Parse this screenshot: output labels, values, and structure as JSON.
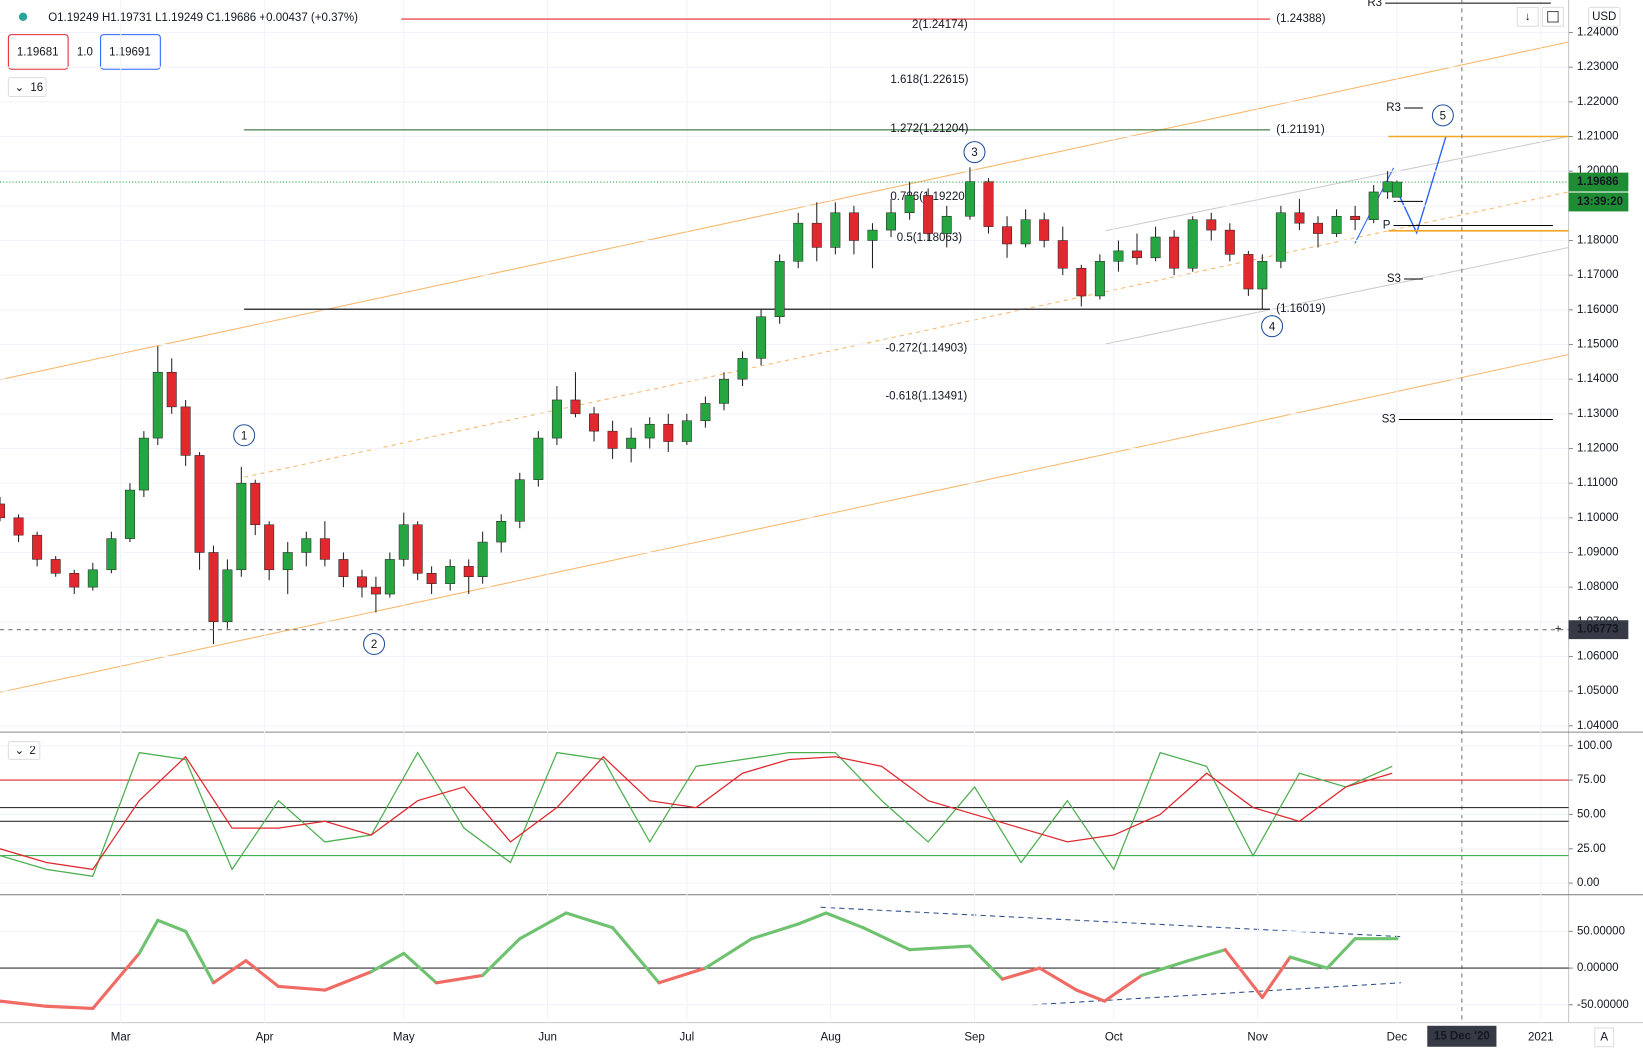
{
  "header": {
    "ohlc": "O1.19249 H1.19731 L1.19249 C1.19686 +0.00437 (+0.37%)",
    "sell": "1.19681",
    "spread": "1.0",
    "buy": "1.19691",
    "indicator_count": "16",
    "currency": "USD",
    "osc_count": "2",
    "auto": "A"
  },
  "chart_data": [
    {
      "type": "candlestick",
      "name": "price",
      "xlim": [
        34,
        372
      ],
      "ylim": [
        1.03818,
        1.24938
      ],
      "xticks": [
        {
          "value": 60,
          "label": "Mar"
        },
        {
          "value": 91,
          "label": "Apr"
        },
        {
          "value": 121,
          "label": "May"
        },
        {
          "value": 152,
          "label": "Jun"
        },
        {
          "value": 182,
          "label": "Jul"
        },
        {
          "value": 213,
          "label": "Aug"
        },
        {
          "value": 244,
          "label": "Sep"
        },
        {
          "value": 274,
          "label": "Oct"
        },
        {
          "value": 305,
          "label": "Nov"
        },
        {
          "value": 335,
          "label": "Dec"
        },
        {
          "value": 366,
          "label": "2021"
        }
      ],
      "yticks": [
        {
          "value": 1.04,
          "label": "1.04000"
        },
        {
          "value": 1.05,
          "label": "1.05000"
        },
        {
          "value": 1.06,
          "label": "1.06000"
        },
        {
          "value": 1.07,
          "label": "1.07000"
        },
        {
          "value": 1.08,
          "label": "1.08000"
        },
        {
          "value": 1.09,
          "label": "1.09000"
        },
        {
          "value": 1.1,
          "label": "1.10000"
        },
        {
          "value": 1.11,
          "label": "1.11000"
        },
        {
          "value": 1.12,
          "label": "1.12000"
        },
        {
          "value": 1.13,
          "label": "1.13000"
        },
        {
          "value": 1.14,
          "label": "1.14000"
        },
        {
          "value": 1.15,
          "label": "1.15000"
        },
        {
          "value": 1.16,
          "label": "1.16000"
        },
        {
          "value": 1.17,
          "label": "1.17000"
        },
        {
          "value": 1.18,
          "label": "1.18000"
        },
        {
          "value": 1.19,
          "label": "1.19000"
        },
        {
          "value": 1.2,
          "label": "1.20000"
        },
        {
          "value": 1.21,
          "label": "1.21000"
        },
        {
          "value": 1.22,
          "label": "1.22000"
        },
        {
          "value": 1.23,
          "label": "1.23000"
        },
        {
          "value": 1.24,
          "label": "1.24000"
        }
      ],
      "up_color": "#26a641",
      "down_color": "#e0282e",
      "candles": [
        {
          "x": 34,
          "o": 1.104,
          "h": 1.106,
          "l": 1.099,
          "c": 1.1
        },
        {
          "x": 38,
          "o": 1.1,
          "h": 1.101,
          "l": 1.093,
          "c": 1.095
        },
        {
          "x": 42,
          "o": 1.095,
          "h": 1.096,
          "l": 1.086,
          "c": 1.088
        },
        {
          "x": 46,
          "o": 1.088,
          "h": 1.089,
          "l": 1.083,
          "c": 1.084
        },
        {
          "x": 50,
          "o": 1.084,
          "h": 1.085,
          "l": 1.078,
          "c": 1.08
        },
        {
          "x": 54,
          "o": 1.08,
          "h": 1.087,
          "l": 1.079,
          "c": 1.085
        },
        {
          "x": 58,
          "o": 1.085,
          "h": 1.096,
          "l": 1.084,
          "c": 1.094
        },
        {
          "x": 62,
          "o": 1.094,
          "h": 1.11,
          "l": 1.093,
          "c": 1.108
        },
        {
          "x": 65,
          "o": 1.108,
          "h": 1.125,
          "l": 1.106,
          "c": 1.123
        },
        {
          "x": 68,
          "o": 1.123,
          "h": 1.1495,
          "l": 1.121,
          "c": 1.142
        },
        {
          "x": 71,
          "o": 1.142,
          "h": 1.146,
          "l": 1.13,
          "c": 1.132
        },
        {
          "x": 74,
          "o": 1.132,
          "h": 1.134,
          "l": 1.115,
          "c": 1.118
        },
        {
          "x": 77,
          "o": 1.118,
          "h": 1.119,
          "l": 1.085,
          "c": 1.09
        },
        {
          "x": 80,
          "o": 1.09,
          "h": 1.092,
          "l": 1.0636,
          "c": 1.07
        },
        {
          "x": 83,
          "o": 1.07,
          "h": 1.088,
          "l": 1.068,
          "c": 1.085
        },
        {
          "x": 86,
          "o": 1.085,
          "h": 1.1147,
          "l": 1.083,
          "c": 1.11
        },
        {
          "x": 89,
          "o": 1.11,
          "h": 1.111,
          "l": 1.095,
          "c": 1.098
        },
        {
          "x": 92,
          "o": 1.098,
          "h": 1.099,
          "l": 1.082,
          "c": 1.085
        },
        {
          "x": 96,
          "o": 1.085,
          "h": 1.093,
          "l": 1.078,
          "c": 1.09
        },
        {
          "x": 100,
          "o": 1.09,
          "h": 1.096,
          "l": 1.086,
          "c": 1.094
        },
        {
          "x": 104,
          "o": 1.094,
          "h": 1.099,
          "l": 1.086,
          "c": 1.088
        },
        {
          "x": 108,
          "o": 1.088,
          "h": 1.09,
          "l": 1.08,
          "c": 1.083
        },
        {
          "x": 112,
          "o": 1.083,
          "h": 1.085,
          "l": 1.077,
          "c": 1.08
        },
        {
          "x": 115,
          "o": 1.08,
          "h": 1.083,
          "l": 1.0727,
          "c": 1.078
        },
        {
          "x": 118,
          "o": 1.078,
          "h": 1.09,
          "l": 1.077,
          "c": 1.088
        },
        {
          "x": 121,
          "o": 1.088,
          "h": 1.1015,
          "l": 1.086,
          "c": 1.098
        },
        {
          "x": 124,
          "o": 1.098,
          "h": 1.099,
          "l": 1.082,
          "c": 1.084
        },
        {
          "x": 127,
          "o": 1.084,
          "h": 1.086,
          "l": 1.078,
          "c": 1.081
        },
        {
          "x": 131,
          "o": 1.081,
          "h": 1.088,
          "l": 1.079,
          "c": 1.086
        },
        {
          "x": 135,
          "o": 1.086,
          "h": 1.088,
          "l": 1.078,
          "c": 1.083
        },
        {
          "x": 138,
          "o": 1.083,
          "h": 1.096,
          "l": 1.081,
          "c": 1.093
        },
        {
          "x": 142,
          "o": 1.093,
          "h": 1.101,
          "l": 1.09,
          "c": 1.099
        },
        {
          "x": 146,
          "o": 1.099,
          "h": 1.113,
          "l": 1.097,
          "c": 1.111
        },
        {
          "x": 150,
          "o": 1.111,
          "h": 1.125,
          "l": 1.109,
          "c": 1.123
        },
        {
          "x": 154,
          "o": 1.123,
          "h": 1.138,
          "l": 1.121,
          "c": 1.134
        },
        {
          "x": 158,
          "o": 1.134,
          "h": 1.142,
          "l": 1.129,
          "c": 1.13
        },
        {
          "x": 162,
          "o": 1.13,
          "h": 1.132,
          "l": 1.122,
          "c": 1.125
        },
        {
          "x": 166,
          "o": 1.125,
          "h": 1.128,
          "l": 1.117,
          "c": 1.12
        },
        {
          "x": 170,
          "o": 1.12,
          "h": 1.126,
          "l": 1.116,
          "c": 1.123
        },
        {
          "x": 174,
          "o": 1.123,
          "h": 1.129,
          "l": 1.12,
          "c": 1.127
        },
        {
          "x": 178,
          "o": 1.127,
          "h": 1.13,
          "l": 1.119,
          "c": 1.122
        },
        {
          "x": 182,
          "o": 1.122,
          "h": 1.13,
          "l": 1.121,
          "c": 1.128
        },
        {
          "x": 186,
          "o": 1.128,
          "h": 1.135,
          "l": 1.126,
          "c": 1.133
        },
        {
          "x": 190,
          "o": 1.133,
          "h": 1.142,
          "l": 1.131,
          "c": 1.14
        },
        {
          "x": 194,
          "o": 1.14,
          "h": 1.148,
          "l": 1.138,
          "c": 1.146
        },
        {
          "x": 198,
          "o": 1.146,
          "h": 1.16,
          "l": 1.144,
          "c": 1.158
        },
        {
          "x": 202,
          "o": 1.158,
          "h": 1.176,
          "l": 1.156,
          "c": 1.174
        },
        {
          "x": 206,
          "o": 1.174,
          "h": 1.188,
          "l": 1.172,
          "c": 1.185
        },
        {
          "x": 210,
          "o": 1.185,
          "h": 1.191,
          "l": 1.174,
          "c": 1.178
        },
        {
          "x": 214,
          "o": 1.178,
          "h": 1.191,
          "l": 1.176,
          "c": 1.188
        },
        {
          "x": 218,
          "o": 1.188,
          "h": 1.19,
          "l": 1.176,
          "c": 1.18
        },
        {
          "x": 222,
          "o": 1.18,
          "h": 1.185,
          "l": 1.172,
          "c": 1.183
        },
        {
          "x": 226,
          "o": 1.183,
          "h": 1.192,
          "l": 1.181,
          "c": 1.188
        },
        {
          "x": 230,
          "o": 1.188,
          "h": 1.197,
          "l": 1.186,
          "c": 1.193
        },
        {
          "x": 234,
          "o": 1.193,
          "h": 1.195,
          "l": 1.18,
          "c": 1.182
        },
        {
          "x": 238,
          "o": 1.182,
          "h": 1.19,
          "l": 1.178,
          "c": 1.187
        },
        {
          "x": 243,
          "o": 1.187,
          "h": 1.2011,
          "l": 1.186,
          "c": 1.197
        },
        {
          "x": 247,
          "o": 1.197,
          "h": 1.198,
          "l": 1.182,
          "c": 1.184
        },
        {
          "x": 251,
          "o": 1.184,
          "h": 1.187,
          "l": 1.175,
          "c": 1.179
        },
        {
          "x": 255,
          "o": 1.179,
          "h": 1.189,
          "l": 1.178,
          "c": 1.186
        },
        {
          "x": 259,
          "o": 1.186,
          "h": 1.188,
          "l": 1.178,
          "c": 1.18
        },
        {
          "x": 263,
          "o": 1.18,
          "h": 1.184,
          "l": 1.17,
          "c": 1.172
        },
        {
          "x": 267,
          "o": 1.172,
          "h": 1.173,
          "l": 1.161,
          "c": 1.164
        },
        {
          "x": 271,
          "o": 1.164,
          "h": 1.176,
          "l": 1.163,
          "c": 1.174
        },
        {
          "x": 275,
          "o": 1.174,
          "h": 1.18,
          "l": 1.171,
          "c": 1.177
        },
        {
          "x": 279,
          "o": 1.177,
          "h": 1.182,
          "l": 1.173,
          "c": 1.175
        },
        {
          "x": 283,
          "o": 1.175,
          "h": 1.184,
          "l": 1.174,
          "c": 1.181
        },
        {
          "x": 287,
          "o": 1.181,
          "h": 1.183,
          "l": 1.17,
          "c": 1.172
        },
        {
          "x": 291,
          "o": 1.172,
          "h": 1.187,
          "l": 1.171,
          "c": 1.186
        },
        {
          "x": 295,
          "o": 1.186,
          "h": 1.188,
          "l": 1.18,
          "c": 1.183
        },
        {
          "x": 299,
          "o": 1.183,
          "h": 1.185,
          "l": 1.174,
          "c": 1.176
        },
        {
          "x": 303,
          "o": 1.176,
          "h": 1.177,
          "l": 1.164,
          "c": 1.166
        },
        {
          "x": 306,
          "o": 1.166,
          "h": 1.176,
          "l": 1.1602,
          "c": 1.174
        },
        {
          "x": 310,
          "o": 1.174,
          "h": 1.19,
          "l": 1.172,
          "c": 1.188
        },
        {
          "x": 314,
          "o": 1.188,
          "h": 1.192,
          "l": 1.183,
          "c": 1.185
        },
        {
          "x": 318,
          "o": 1.185,
          "h": 1.187,
          "l": 1.178,
          "c": 1.182
        },
        {
          "x": 322,
          "o": 1.182,
          "h": 1.189,
          "l": 1.181,
          "c": 1.187
        },
        {
          "x": 326,
          "o": 1.187,
          "h": 1.19,
          "l": 1.183,
          "c": 1.186
        },
        {
          "x": 330,
          "o": 1.186,
          "h": 1.196,
          "l": 1.185,
          "c": 1.194
        },
        {
          "x": 333,
          "o": 1.194,
          "h": 1.2,
          "l": 1.192,
          "c": 1.197
        },
        {
          "x": 335,
          "o": 1.19249,
          "h": 1.19731,
          "l": 1.19249,
          "c": 1.19686
        }
      ],
      "levels": [
        {
          "value": 1.24388,
          "label": "(1.24388)",
          "color": "#e0282e"
        },
        {
          "value": 1.21191,
          "label": "(1.21191)",
          "color": "#1b5e20"
        },
        {
          "value": 1.16019,
          "label": "(1.16019)",
          "color": "#000000"
        }
      ],
      "fib_labels": [
        "2(1.24174)",
        "1.618(1.22615)",
        "1.272(1.21204)",
        "0.786(1.19220)",
        "0.5(1.18063)",
        "-0.272(1.14903)",
        "-0.618(1.13491)"
      ],
      "pivots": [
        {
          "label": "R3",
          "value": 1.24847
        },
        {
          "label": "R3",
          "value": 1.21822
        },
        {
          "label": "P",
          "value": 1.18433
        },
        {
          "label": "S3",
          "value": 1.1689
        },
        {
          "label": "S3",
          "value": 1.12835
        }
      ],
      "zones": [
        1.21,
        1.1828
      ],
      "zone_color": "#f5a623",
      "waves": [
        "1",
        "2",
        "3",
        "4",
        "5"
      ],
      "last_price": {
        "value": 1.19686,
        "label": "1.19686",
        "countdown": "13:39:20"
      },
      "crosshair": {
        "x": 349,
        "x_label": "15 Dec '20",
        "y": 1.06773,
        "y_label": "1.06773"
      }
    },
    {
      "type": "line",
      "name": "stochastic",
      "ylim": [
        -8.4,
        108.4
      ],
      "yticks": [
        {
          "value": 100,
          "label": "100.00"
        },
        {
          "value": 75,
          "label": "75.00"
        },
        {
          "value": 50,
          "label": "50.00"
        },
        {
          "value": 25,
          "label": "25.00"
        },
        {
          "value": 0,
          "label": "0.00"
        }
      ],
      "levels": [
        {
          "value": 75,
          "color": "#e0282e"
        },
        {
          "value": 55,
          "color": "#333333"
        },
        {
          "value": 45,
          "color": "#333333"
        },
        {
          "value": 20,
          "color": "#26a641"
        }
      ],
      "x": [
        34,
        44,
        54,
        64,
        74,
        84,
        94,
        104,
        114,
        124,
        134,
        144,
        154,
        164,
        174,
        184,
        194,
        204,
        214,
        224,
        234,
        244,
        254,
        264,
        274,
        284,
        294,
        304,
        314,
        324,
        334
      ],
      "series": [
        {
          "color": "#4caf50",
          "values": [
            20,
            10,
            5,
            95,
            90,
            10,
            60,
            30,
            35,
            95,
            40,
            15,
            95,
            90,
            30,
            85,
            90,
            95,
            95,
            60,
            30,
            70,
            15,
            60,
            10,
            95,
            85,
            20,
            80,
            70,
            85
          ]
        },
        {
          "color": "#e0282e",
          "values": [
            25,
            15,
            10,
            60,
            92,
            40,
            40,
            45,
            35,
            60,
            70,
            30,
            55,
            92,
            60,
            55,
            80,
            90,
            92,
            85,
            60,
            50,
            40,
            30,
            35,
            50,
            80,
            55,
            45,
            70,
            80
          ]
        }
      ]
    },
    {
      "type": "line",
      "name": "momentum",
      "ylim": [
        -74.3,
        97.1
      ],
      "yticks": [
        {
          "value": 50,
          "label": "50.00000"
        },
        {
          "value": 0,
          "label": "0.00000"
        },
        {
          "value": -50,
          "label": "-50.00000"
        }
      ],
      "x": [
        34,
        44,
        54,
        64,
        68,
        74,
        80,
        87,
        94,
        104,
        114,
        121,
        128,
        138,
        146,
        156,
        166,
        176,
        186,
        196,
        206,
        212,
        220,
        230,
        243,
        250,
        258,
        266,
        272,
        280,
        290,
        298,
        306,
        312,
        320,
        326,
        335
      ],
      "values": [
        -45,
        -52,
        -55,
        20,
        65,
        50,
        -20,
        10,
        -25,
        -30,
        -5,
        20,
        -20,
        -10,
        40,
        75,
        55,
        -20,
        0,
        40,
        60,
        75,
        55,
        25,
        30,
        -15,
        0,
        -30,
        -45,
        -10,
        10,
        25,
        -40,
        15,
        0,
        40,
        40
      ],
      "up_color": "#6fc26f",
      "down_color": "#ef6b63"
    }
  ]
}
